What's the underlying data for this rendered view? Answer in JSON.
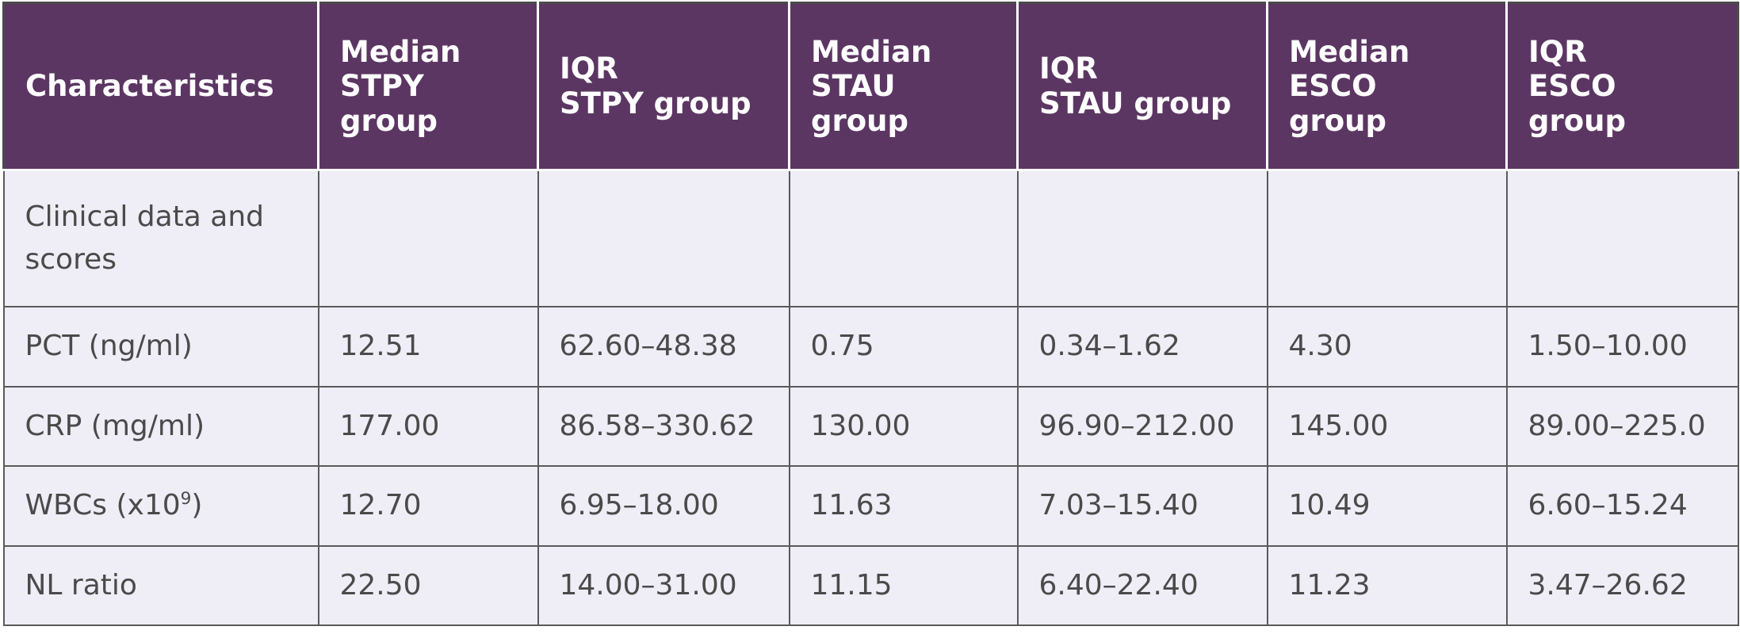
{
  "table": {
    "headers": [
      "Characteristics",
      "Median\nSTPY\ngroup",
      "IQR\nSTPY group",
      "Median\nSTAU\ngroup",
      "IQR\nSTAU group",
      "Median\nESCO\ngroup",
      "IQR\nESCO\ngroup"
    ],
    "section_row": {
      "label": "Clinical data and scores"
    },
    "rows": [
      {
        "label": "PCT (ng/ml)",
        "cells": [
          "12.51",
          "62.60–48.38",
          "0.75",
          "0.34–1.62",
          "4.30",
          "1.50–10.00"
        ]
      },
      {
        "label": "CRP (mg/ml)",
        "cells": [
          "177.00",
          "86.58–330.62",
          "130.00",
          "96.90–212.00",
          "145.00",
          "89.00–225.0"
        ]
      },
      {
        "label_main": "WBCs (x10",
        "label_sup": "9",
        "label_end": ")",
        "cells": [
          "12.70",
          "6.95–18.00",
          "11.63",
          "7.03–15.40",
          "10.49",
          "6.60–15.24"
        ]
      },
      {
        "label": "NL ratio",
        "cells": [
          "22.50",
          "14.00–31.00",
          "11.15",
          "6.40–22.40",
          "11.23",
          "3.47–26.62"
        ]
      }
    ],
    "colors": {
      "header_bg": "#5c3663",
      "body_bg": "#efedf6",
      "text": "#4a4a4a"
    }
  }
}
